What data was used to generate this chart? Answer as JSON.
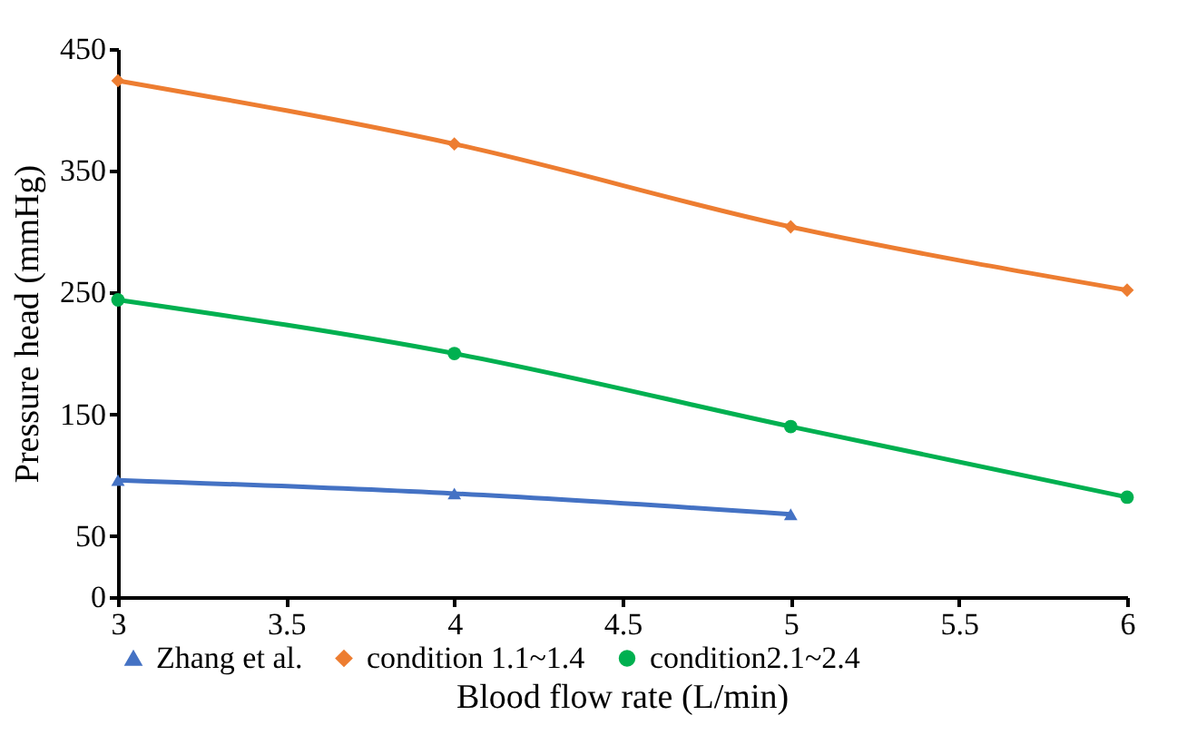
{
  "chart_data": {
    "type": "line",
    "xlabel": "Blood flow rate (L/min)",
    "ylabel": "Pressure head (mmHg)",
    "x": [
      3,
      4,
      5,
      6
    ],
    "series": [
      {
        "name": "Zhang et al.",
        "color": "#4472c4",
        "marker": "triangle",
        "x": [
          3,
          4,
          5
        ],
        "values": [
          96,
          85,
          68
        ]
      },
      {
        "name": "condition 1.1~1.4",
        "color": "#ed7d31",
        "marker": "diamond",
        "values": [
          424,
          372,
          304,
          252
        ]
      },
      {
        "name": "condition2.1~2.4",
        "color": "#00b050",
        "marker": "circle",
        "values": [
          244,
          200,
          140,
          82
        ]
      }
    ],
    "xlim": [
      3,
      6
    ],
    "xticks": [
      3,
      3.5,
      4,
      4.5,
      5,
      5.5,
      6
    ],
    "ylim": [
      0,
      450
    ],
    "yticks": [
      0,
      50,
      150,
      250,
      350,
      450
    ],
    "grid": false,
    "legend": "bottom",
    "line_style": "solid"
  }
}
